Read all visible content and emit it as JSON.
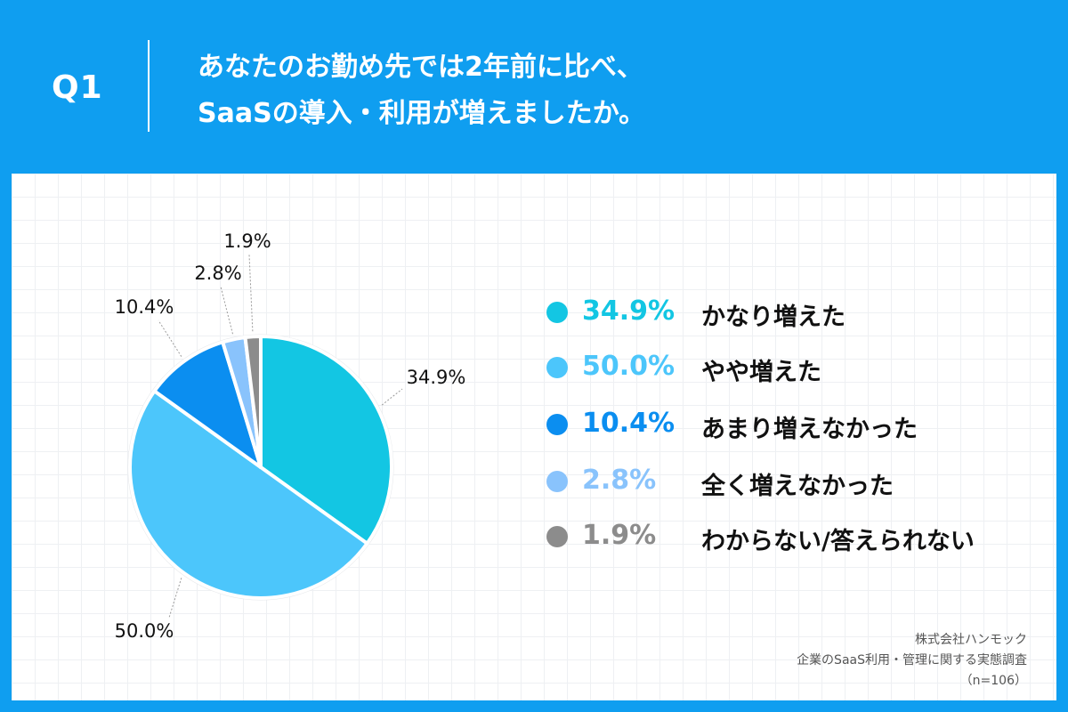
{
  "header": {
    "question_label": "Q1",
    "title_line1": "あなたのお勤め先では2年前に比べ、",
    "title_line2": "SaaSの導入・利用が増えましたか。"
  },
  "chart_data": {
    "type": "pie",
    "slices": [
      {
        "label": "かなり増えた",
        "value": 34.9,
        "display": "34.9%",
        "color": "#13c6e3"
      },
      {
        "label": "やや増えた",
        "value": 50.0,
        "display": "50.0%",
        "color": "#4cc6fb"
      },
      {
        "label": "あまり増えなかった",
        "value": 10.4,
        "display": "10.4%",
        "color": "#0b8ef0"
      },
      {
        "label": "全く増えなかった",
        "value": 2.8,
        "display": "2.8%",
        "color": "#89c3fc"
      },
      {
        "label": "わからない/答えられない",
        "value": 1.9,
        "display": "1.9%",
        "color": "#8c8c8c"
      }
    ],
    "legend_position": "right",
    "start": "top, clockwise"
  },
  "footer": {
    "company": "株式会社ハンモック",
    "survey": "企業のSaaS利用・管理に関する実態調査",
    "sample": "（n=106）"
  },
  "colors": {
    "background": "#0f9ef0",
    "panel": "#ffffff",
    "grid": "#eef0f3"
  }
}
